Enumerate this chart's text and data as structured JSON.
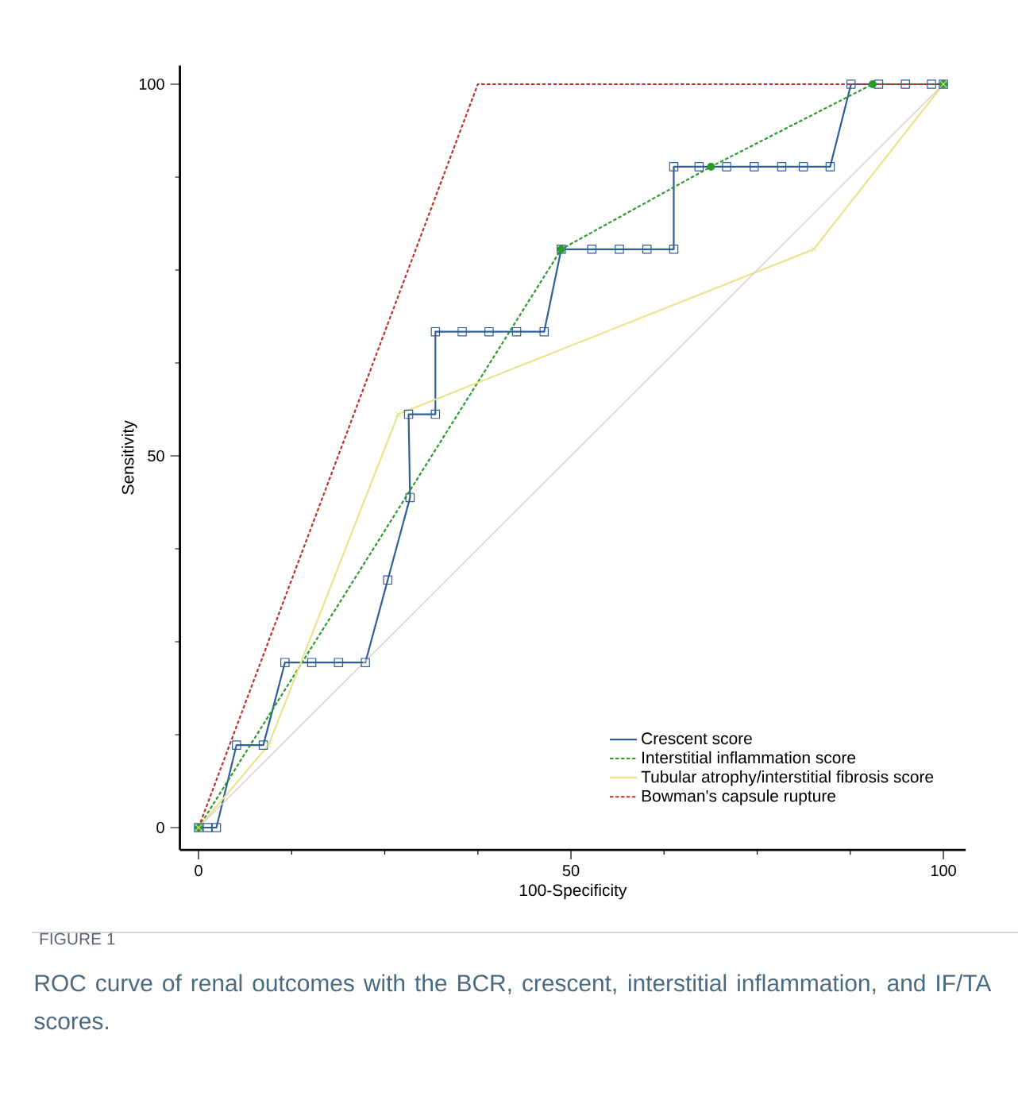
{
  "chart_data": {
    "type": "line",
    "xlabel": "100-Specificity",
    "ylabel": "Sensitivity",
    "xlim": [
      -2.5,
      103
    ],
    "ylim": [
      -3,
      102.5
    ],
    "xticks": [
      0,
      50,
      100
    ],
    "yticks": [
      0,
      50,
      100
    ],
    "legend": "bottom right",
    "grid": false,
    "annotations": [
      "FIGURE 1",
      "ROC curve of renal outcomes with the BCR, crescent, interstitial inflammation, and IF/TA scores."
    ],
    "series": [
      {
        "name": "Crescent score",
        "color": "#2f5f9a",
        "marker": "square",
        "line_style": "solid",
        "x": [
          0,
          1.2,
          2.4,
          5.1,
          8.7,
          11.6,
          15.2,
          18.8,
          22.4,
          25.4,
          28.4,
          28.2,
          31.8,
          31.8,
          35.4,
          39.0,
          42.7,
          46.4,
          48.7,
          52.8,
          56.5,
          60.2,
          63.8,
          63.8,
          67.2,
          70.9,
          74.6,
          78.3,
          81.2,
          84.8,
          87.6,
          91.3,
          94.9,
          98.4,
          100
        ],
        "values": [
          0,
          0,
          0,
          11.1,
          11.1,
          22.2,
          22.2,
          22.2,
          22.2,
          33.3,
          44.4,
          55.6,
          55.6,
          66.7,
          66.7,
          66.7,
          66.7,
          66.7,
          77.8,
          77.8,
          77.8,
          77.8,
          77.8,
          88.9,
          88.9,
          88.9,
          88.9,
          88.9,
          88.9,
          88.9,
          100,
          100,
          100,
          100,
          100
        ]
      },
      {
        "name": "Interstitial inflammation score",
        "color": "#2a9a2a",
        "marker": "circle",
        "line_style": "dashed",
        "x": [
          0,
          48.7,
          68.8,
          90.5,
          100
        ],
        "values": [
          0,
          77.8,
          88.9,
          100,
          100
        ]
      },
      {
        "name": "Tubular atrophy/interstitial fibrosis score",
        "color": "#e8e48c",
        "marker": "cross",
        "line_style": "solid",
        "x": [
          0,
          9.4,
          26.8,
          82.6,
          100
        ],
        "values": [
          0,
          11.1,
          55.6,
          77.8,
          100
        ]
      },
      {
        "name": "Bowman's capsule rupture",
        "color": "#c0302a",
        "marker": "none",
        "line_style": "dashed",
        "x": [
          0,
          37.5,
          100
        ],
        "values": [
          0,
          100,
          100
        ]
      },
      {
        "name": null,
        "color": "#d9c4c8",
        "marker": "none",
        "line_style": "solid",
        "x": [
          0,
          100
        ],
        "values": [
          0,
          100
        ]
      }
    ]
  }
}
